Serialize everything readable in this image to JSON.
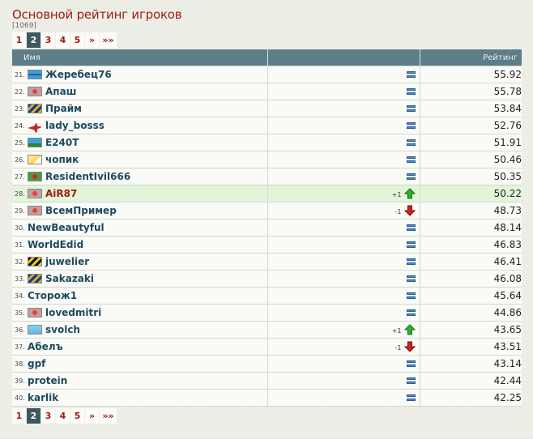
{
  "title": "Основной рейтинг игроков",
  "count": "[1069]",
  "pagination": [
    "1",
    "2",
    "3",
    "4",
    "5",
    "»",
    "»»"
  ],
  "pagination_active": "2",
  "table": {
    "headers": {
      "name": "Имя",
      "change": "",
      "rating": "Рейтинг"
    },
    "rows": [
      {
        "rank": "21.",
        "name": "Жеребец76",
        "flag": "shark-flag",
        "delta": "",
        "trend": "equal",
        "rating": "55.92"
      },
      {
        "rank": "22.",
        "name": "Апаш",
        "flag": "red-star-flag",
        "delta": "",
        "trend": "equal",
        "rating": "55.78"
      },
      {
        "rank": "23.",
        "name": "Прайм",
        "flag": "striped-flag",
        "delta": "",
        "trend": "equal",
        "rating": "53.84"
      },
      {
        "rank": "24.",
        "name": "lady_bosss",
        "flag": "red-plane-flag",
        "delta": "",
        "trend": "equal",
        "rating": "52.76"
      },
      {
        "rank": "25.",
        "name": "E240T",
        "flag": "palm-flag",
        "delta": "",
        "trend": "equal",
        "rating": "51.91"
      },
      {
        "rank": "26.",
        "name": "чопик",
        "flag": "yellow-flag",
        "delta": "",
        "trend": "equal",
        "rating": "50.46"
      },
      {
        "rank": "27.",
        "name": "ResidentIvil666",
        "flag": "red-circle-flag",
        "delta": "",
        "trend": "equal",
        "rating": "50.35"
      },
      {
        "rank": "28.",
        "name": "AiR87",
        "flag": "red-star-flag",
        "delta": "+1",
        "trend": "up",
        "rating": "50.22",
        "highlighted": true
      },
      {
        "rank": "29.",
        "name": "ВсемПример",
        "flag": "red-star-flag",
        "delta": "-1",
        "trend": "down",
        "rating": "48.73"
      },
      {
        "rank": "30.",
        "name": "NewBeautyful",
        "flag": "",
        "delta": "",
        "trend": "equal",
        "rating": "48.14"
      },
      {
        "rank": "31.",
        "name": "WorldEdid",
        "flag": "",
        "delta": "",
        "trend": "equal",
        "rating": "46.83"
      },
      {
        "rank": "32.",
        "name": "juwelier",
        "flag": "black-yellow-flag",
        "delta": "",
        "trend": "equal",
        "rating": "46.41"
      },
      {
        "rank": "33.",
        "name": "Sakazaki",
        "flag": "striped-flag",
        "delta": "",
        "trend": "equal",
        "rating": "46.08"
      },
      {
        "rank": "34.",
        "name": "Сторож1",
        "flag": "",
        "delta": "",
        "trend": "equal",
        "rating": "45.64"
      },
      {
        "rank": "35.",
        "name": "lovedmitri",
        "flag": "red-star-flag",
        "delta": "",
        "trend": "equal",
        "rating": "44.86"
      },
      {
        "rank": "36.",
        "name": "svolch",
        "flag": "light-blue-flag",
        "delta": "+1",
        "trend": "up",
        "rating": "43.65"
      },
      {
        "rank": "37.",
        "name": "Абелъ",
        "flag": "",
        "delta": "-1",
        "trend": "down",
        "rating": "43.51"
      },
      {
        "rank": "38.",
        "name": "gpf",
        "flag": "",
        "delta": "",
        "trend": "equal",
        "rating": "43.14"
      },
      {
        "rank": "39.",
        "name": "protein",
        "flag": "",
        "delta": "",
        "trend": "equal",
        "rating": "42.44"
      },
      {
        "rank": "40.",
        "name": "karlik",
        "flag": "",
        "delta": "",
        "trend": "equal",
        "rating": "42.25"
      }
    ]
  },
  "colors": {
    "title": "#9c1b10",
    "header_bg": "#5d7e86",
    "name_link": "#1e4a5e",
    "highlight_row": "#e2f5d8",
    "up_arrow": "#2db22d",
    "down_arrow": "#d42020",
    "equal_icon": "#4a8fd4"
  }
}
